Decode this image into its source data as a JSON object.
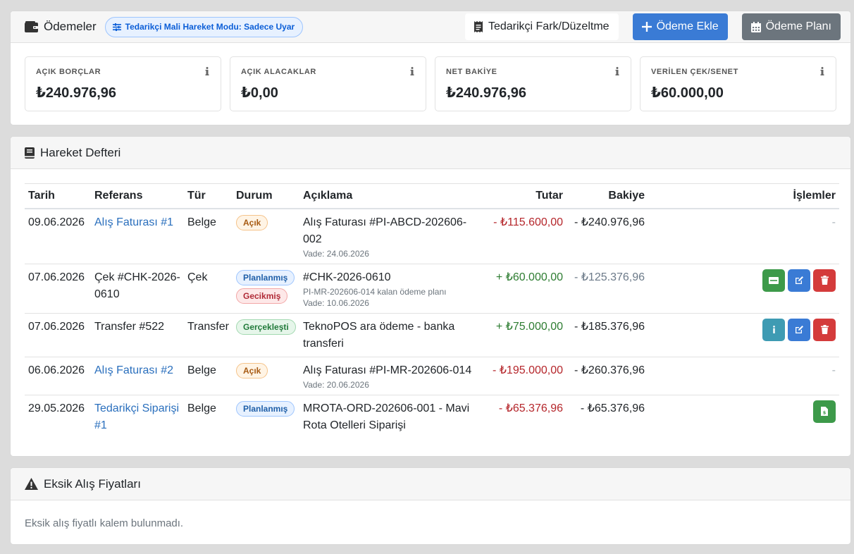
{
  "payments": {
    "title": "Ödemeler",
    "mode_badge": "Tedarikçi Mali Hareket Modu: Sadece Uyar",
    "diff_button": "Tedarikçi Fark/Düzeltme",
    "add_payment_button": "Ödeme Ekle",
    "payment_plan_button": "Ödeme Planı",
    "stats": [
      {
        "label": "AÇIK BORÇLAR",
        "value": "₺240.976,96"
      },
      {
        "label": "AÇIK ALACAKLAR",
        "value": "₺0,00"
      },
      {
        "label": "NET BAKİYE",
        "value": "₺240.976,96"
      },
      {
        "label": "VERİLEN ÇEK/SENET",
        "value": "₺60.000,00"
      }
    ]
  },
  "ledger": {
    "title": "Hareket Defteri",
    "columns": {
      "date": "Tarih",
      "reference": "Referans",
      "type": "Tür",
      "status": "Durum",
      "description": "Açıklama",
      "amount": "Tutar",
      "balance": "Bakiye",
      "actions": "İşlemler"
    },
    "rows": [
      {
        "date": "09.06.2026",
        "reference": "Alış Faturası #1",
        "type": "Belge",
        "status": [
          "Açık"
        ],
        "description": "Alış Faturası #PI-ABCD-202606-002",
        "sub1": "",
        "sub2": "Vade: 24.06.2026",
        "amount": "- ₺115.600,00",
        "balance": "- ₺240.976,96",
        "dash": "-"
      },
      {
        "date": "07.06.2026",
        "reference": "Çek #CHK-2026-0610",
        "type": "Çek",
        "status": [
          "Planlanmış",
          "Gecikmiş"
        ],
        "description": "#CHK-2026-0610",
        "sub1": "PI-MR-202606-014 kalan ödeme planı",
        "sub2": "Vade: 10.06.2026",
        "amount": "+ ₺60.000,00",
        "balance": "- ₺125.376,96"
      },
      {
        "date": "07.06.2026",
        "reference": "Transfer #522",
        "type": "Transfer",
        "status": [
          "Gerçekleşti"
        ],
        "description": "TeknoPOS ara ödeme - banka transferi",
        "sub1": "",
        "sub2": "",
        "amount": "+ ₺75.000,00",
        "balance": "- ₺185.376,96"
      },
      {
        "date": "06.06.2026",
        "reference": "Alış Faturası #2",
        "type": "Belge",
        "status": [
          "Açık"
        ],
        "description": "Alış Faturası #PI-MR-202606-014",
        "sub1": "",
        "sub2": "Vade: 20.06.2026",
        "amount": "- ₺195.000,00",
        "balance": "- ₺260.376,96",
        "dash": "-"
      },
      {
        "date": "29.05.2026",
        "reference": "Tedarikçi Siparişi #1",
        "type": "Belge",
        "status": [
          "Planlanmış"
        ],
        "description": "MROTA-ORD-202606-001 - Mavi Rota Otelleri Siparişi",
        "sub1": "",
        "sub2": "",
        "amount": "- ₺65.376,96",
        "balance": "- ₺65.376,96"
      }
    ]
  },
  "missing": {
    "title": "Eksik Alış Fiyatları",
    "empty_message": "Eksik alış fiyatlı kalem bulunmadı."
  }
}
